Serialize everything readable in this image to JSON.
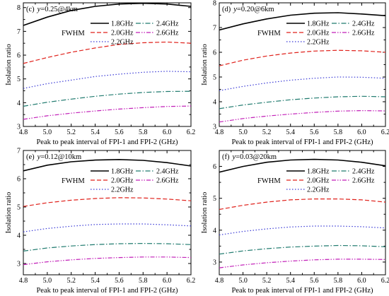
{
  "figure": {
    "xlabel": "Peak to peak interval of FPI-1 and FPI-2 (GHz)",
    "ylabel": "Isolation ratio",
    "legend_title": "FWHM",
    "legend": [
      "1.8GHz",
      "2.0GHz",
      "2.2GHz",
      "2.4GHz",
      "2.6GHz"
    ]
  },
  "colors": {
    "s18": "#000000",
    "s20": "#e0211b",
    "s22": "#3b3bd6",
    "s24": "#1f7a6e",
    "s26": "#c21fb8"
  },
  "chart_data": [
    {
      "type": "line",
      "panel": "(c)",
      "ylabel": "Isolation ratio",
      "xlabel": "Peak to peak interval of FPI-1 and FPI-2 (GHz)",
      "x": [
        4.8,
        5.0,
        5.2,
        5.4,
        5.6,
        5.8,
        6.0,
        6.2
      ],
      "xlim": [
        4.8,
        6.2
      ],
      "ylim": [
        3,
        8.2
      ],
      "yticks": [
        3,
        4,
        5,
        6,
        7,
        8
      ],
      "xticks": [
        4.8,
        5.0,
        5.2,
        5.4,
        5.6,
        5.8,
        6.0,
        6.2
      ],
      "series": [
        {
          "name": "1.8GHz",
          "values": [
            7.25,
            7.6,
            7.88,
            8.05,
            8.15,
            8.18,
            8.15,
            8.05
          ]
        },
        {
          "name": "2.0GHz",
          "values": [
            5.65,
            5.9,
            6.12,
            6.3,
            6.45,
            6.52,
            6.55,
            6.5
          ]
        },
        {
          "name": "2.2GHz",
          "values": [
            4.6,
            4.8,
            4.95,
            5.1,
            5.2,
            5.28,
            5.32,
            5.3
          ]
        },
        {
          "name": "2.4GHz",
          "values": [
            3.85,
            4.02,
            4.15,
            4.27,
            4.36,
            4.43,
            4.47,
            4.48
          ]
        },
        {
          "name": "2.6GHz",
          "values": [
            3.3,
            3.45,
            3.56,
            3.65,
            3.73,
            3.79,
            3.84,
            3.86
          ]
        }
      ]
    },
    {
      "type": "line",
      "panel": "(d)",
      "ylabel": "Isolation ratio",
      "xlabel": "Peak to peak interval of FPI-1 and FPI-2 (GHz)",
      "x": [
        4.8,
        5.0,
        5.2,
        5.4,
        5.6,
        5.8,
        6.0,
        6.2
      ],
      "xlim": [
        4.8,
        6.2
      ],
      "ylim": [
        3,
        8
      ],
      "yticks": [
        3,
        4,
        5,
        6,
        7,
        8
      ],
      "xticks": [
        4.8,
        5.0,
        5.2,
        5.4,
        5.6,
        5.8,
        6.0,
        6.2
      ],
      "series": [
        {
          "name": "1.8GHz",
          "values": [
            6.9,
            7.15,
            7.35,
            7.5,
            7.58,
            7.6,
            7.55,
            7.48
          ]
        },
        {
          "name": "2.0GHz",
          "values": [
            5.45,
            5.68,
            5.85,
            5.97,
            6.05,
            6.08,
            6.06,
            6.0
          ]
        },
        {
          "name": "2.2GHz",
          "values": [
            4.45,
            4.62,
            4.76,
            4.87,
            4.95,
            5.0,
            4.99,
            4.95
          ]
        },
        {
          "name": "2.4GHz",
          "values": [
            3.72,
            3.87,
            3.98,
            4.08,
            4.15,
            4.2,
            4.22,
            4.2
          ]
        },
        {
          "name": "2.6GHz",
          "values": [
            3.18,
            3.32,
            3.42,
            3.5,
            3.57,
            3.62,
            3.64,
            3.63
          ]
        }
      ]
    },
    {
      "type": "line",
      "panel": "(e)",
      "ylabel": "Isolation ratio",
      "xlabel": "Peak to peak interval of FPI-1 and FPI-2 (GHz)",
      "x": [
        4.8,
        5.0,
        5.2,
        5.4,
        5.6,
        5.8,
        6.0,
        6.2
      ],
      "xlim": [
        4.8,
        6.2
      ],
      "ylim": [
        2.6,
        7
      ],
      "yticks": [
        3,
        4,
        5,
        6,
        7
      ],
      "xticks": [
        4.8,
        5.0,
        5.2,
        5.4,
        5.6,
        5.8,
        6.0,
        6.2
      ],
      "series": [
        {
          "name": "1.8GHz",
          "values": [
            6.28,
            6.48,
            6.6,
            6.66,
            6.68,
            6.65,
            6.57,
            6.45
          ]
        },
        {
          "name": "2.0GHz",
          "values": [
            5.02,
            5.15,
            5.24,
            5.3,
            5.33,
            5.32,
            5.28,
            5.22
          ]
        },
        {
          "name": "2.2GHz",
          "values": [
            4.12,
            4.24,
            4.32,
            4.38,
            4.4,
            4.4,
            4.37,
            4.33
          ]
        },
        {
          "name": "2.4GHz",
          "values": [
            3.44,
            3.55,
            3.62,
            3.67,
            3.7,
            3.71,
            3.7,
            3.67
          ]
        },
        {
          "name": "2.6GHz",
          "values": [
            2.96,
            3.06,
            3.13,
            3.18,
            3.21,
            3.23,
            3.23,
            3.21
          ]
        }
      ]
    },
    {
      "type": "line",
      "panel": "(f)",
      "ylabel": "Isolation ratio",
      "xlabel": "Peak to peak interval of FPI-1 and FPI-2 (GHz)",
      "x": [
        4.8,
        5.0,
        5.2,
        5.4,
        5.6,
        5.8,
        6.0,
        6.2
      ],
      "xlim": [
        4.8,
        6.2
      ],
      "ylim": [
        2.6,
        6.5
      ],
      "yticks": [
        3,
        4,
        5,
        6
      ],
      "xticks": [
        4.8,
        5.0,
        5.2,
        5.4,
        5.6,
        5.8,
        6.0,
        6.2
      ],
      "series": [
        {
          "name": "1.8GHz",
          "values": [
            5.82,
            6.0,
            6.13,
            6.2,
            6.22,
            6.2,
            6.13,
            6.02
          ]
        },
        {
          "name": "2.0GHz",
          "values": [
            4.65,
            4.78,
            4.88,
            4.95,
            4.98,
            4.98,
            4.95,
            4.88
          ]
        },
        {
          "name": "2.2GHz",
          "values": [
            3.85,
            3.96,
            4.04,
            4.1,
            4.13,
            4.13,
            4.11,
            4.07
          ]
        },
        {
          "name": "2.4GHz",
          "values": [
            3.25,
            3.35,
            3.42,
            3.47,
            3.5,
            3.52,
            3.51,
            3.48
          ]
        },
        {
          "name": "2.6GHz",
          "values": [
            2.82,
            2.91,
            2.98,
            3.03,
            3.07,
            3.09,
            3.09,
            3.08
          ]
        }
      ]
    }
  ],
  "panels": [
    {
      "label": "(c)",
      "y_symbol": "y",
      "y_value": "=0.25@4km"
    },
    {
      "label": "(d)",
      "y_symbol": "y",
      "y_value": "=0.20@6km"
    },
    {
      "label": "(e)",
      "y_symbol": "y",
      "y_value": "=0.12@10km"
    },
    {
      "label": "(f)",
      "y_symbol": "y",
      "y_value": "=0.03@20km"
    }
  ]
}
